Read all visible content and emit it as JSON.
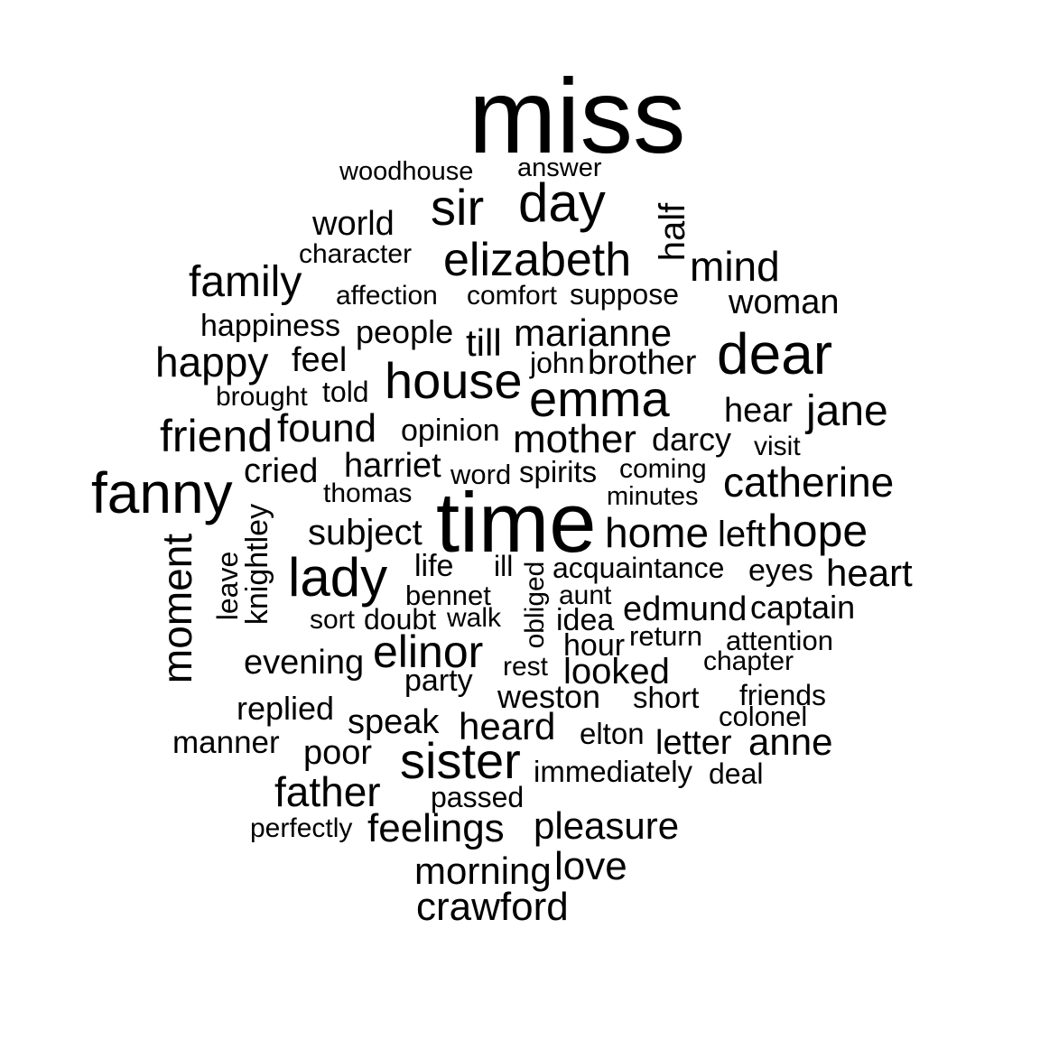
{
  "word_cloud": {
    "text_color": "#000000",
    "background_color": "#ffffff",
    "words": [
      "miss",
      "woodhouse",
      "answer",
      "sir",
      "day",
      "half",
      "world",
      "character",
      "elizabeth",
      "mind",
      "family",
      "affection",
      "comfort",
      "suppose",
      "woman",
      "happiness",
      "people",
      "till",
      "marianne",
      "dear",
      "happy",
      "feel",
      "john",
      "brother",
      "house",
      "brought",
      "told",
      "emma",
      "hear",
      "jane",
      "friend",
      "found",
      "opinion",
      "mother",
      "darcy",
      "visit",
      "cried",
      "harriet",
      "word",
      "spirits",
      "coming",
      "fanny",
      "catherine",
      "thomas",
      "minutes",
      "time",
      "knightley",
      "subject",
      "home",
      "left",
      "hope",
      "moment",
      "leave",
      "lady",
      "life",
      "ill",
      "acquaintance",
      "eyes",
      "heart",
      "bennet",
      "obliged",
      "aunt",
      "edmund",
      "captain",
      "sort",
      "doubt",
      "walk",
      "idea",
      "elinor",
      "hour",
      "return",
      "attention",
      "evening",
      "rest",
      "looked",
      "chapter",
      "party",
      "weston",
      "short",
      "friends",
      "replied",
      "speak",
      "heard",
      "colonel",
      "elton",
      "manner",
      "letter",
      "anne",
      "poor",
      "sister",
      "immediately",
      "deal",
      "father",
      "passed",
      "perfectly",
      "feelings",
      "pleasure",
      "morning",
      "love",
      "crawford"
    ]
  }
}
